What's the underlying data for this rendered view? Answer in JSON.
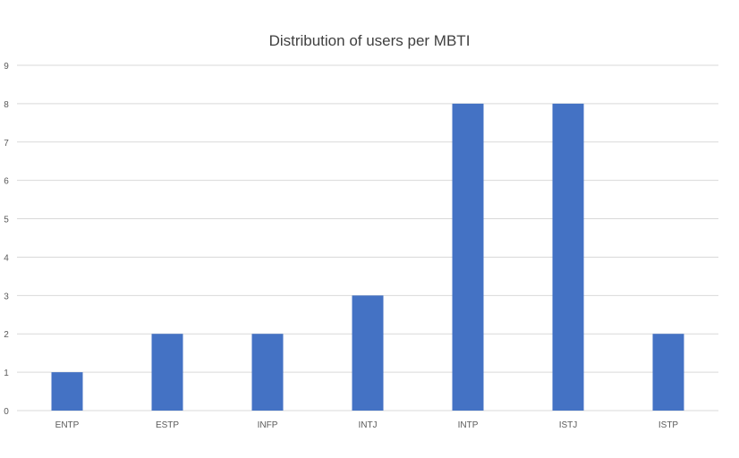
{
  "chart_data": {
    "type": "bar",
    "title": "Distribution of users per MBTI",
    "xlabel": "",
    "ylabel": "",
    "categories": [
      "ENTP",
      "ESTP",
      "INFP",
      "INTJ",
      "INTP",
      "ISTJ",
      "ISTP"
    ],
    "values": [
      1,
      2,
      2,
      3,
      8,
      8,
      2
    ],
    "ylim": [
      0,
      9
    ],
    "yticks": [
      "0",
      "1",
      "2",
      "3",
      "4",
      "5",
      "6",
      "7",
      "8",
      "9"
    ],
    "grid": true,
    "legend": "none",
    "colors": {
      "bar": "#4472C4",
      "grid": "#D9D9D9",
      "text": "#595959",
      "title": "#404040"
    }
  }
}
